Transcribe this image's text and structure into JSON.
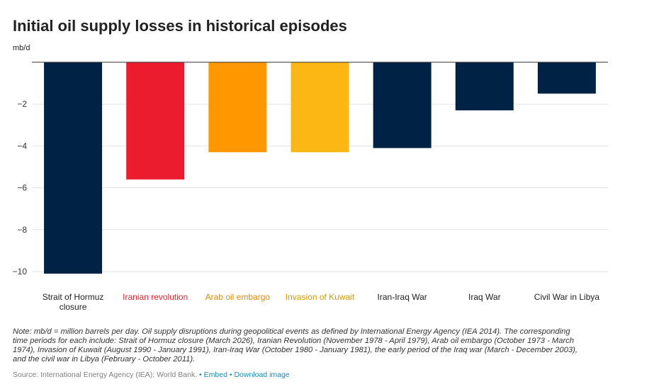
{
  "title": "Initial oil supply losses in historical episodes",
  "unit_label": "mb/d",
  "note": "Note: mb/d = million barrels per day. Oil supply disruptions during geopolitical events as defined by International Energy Agency (IEA 2014). The corresponding time periods for each include: Strait of Hormuz closure (March 2026), Iranian Revolution (November 1978 - April 1979), Arab oil embargo (October 1973 - March 1974), Invasion of Kuwait (August 1990 - January 1991), Iran-Iraq War (October 1980 - January 1981), the early period of the Iraq war (March - December 2003), and the civil war in Libya (February - October 2011).",
  "footer": {
    "source": "Source: International Energy Agency (IEA); World Bank.",
    "separator": "•",
    "embed_label": "Embed",
    "download_label": "Download image"
  },
  "chart_data": {
    "type": "bar",
    "title": "Initial oil supply losses in historical episodes",
    "ylabel": "mb/d",
    "xlabel": "",
    "ylim": [
      -10.2,
      0
    ],
    "yticks": [
      -2,
      -4,
      -6,
      -8,
      -10
    ],
    "grid": true,
    "categories": [
      {
        "label_lines": [
          "Strait of Hormuz",
          "closure"
        ],
        "value": -10.1,
        "color": "#002345"
      },
      {
        "label_lines": [
          "Iranian revolution"
        ],
        "value": -5.6,
        "color": "#EB1C2D"
      },
      {
        "label_lines": [
          "Arab oil embargo"
        ],
        "value": -4.3,
        "color": "#FF9800"
      },
      {
        "label_lines": [
          "Invasion of Kuwait"
        ],
        "value": -4.3,
        "color": "#FDB714"
      },
      {
        "label_lines": [
          "Iran-Iraq War"
        ],
        "value": -4.1,
        "color": "#002345"
      },
      {
        "label_lines": [
          "Iraq War"
        ],
        "value": -2.3,
        "color": "#002345"
      },
      {
        "label_lines": [
          "Civil War in Libya"
        ],
        "value": -1.5,
        "color": "#002345"
      }
    ],
    "label_colors": [
      "#222222",
      "#EB1C2D",
      "#E68A00",
      "#D99A00",
      "#222222",
      "#222222",
      "#222222"
    ]
  }
}
